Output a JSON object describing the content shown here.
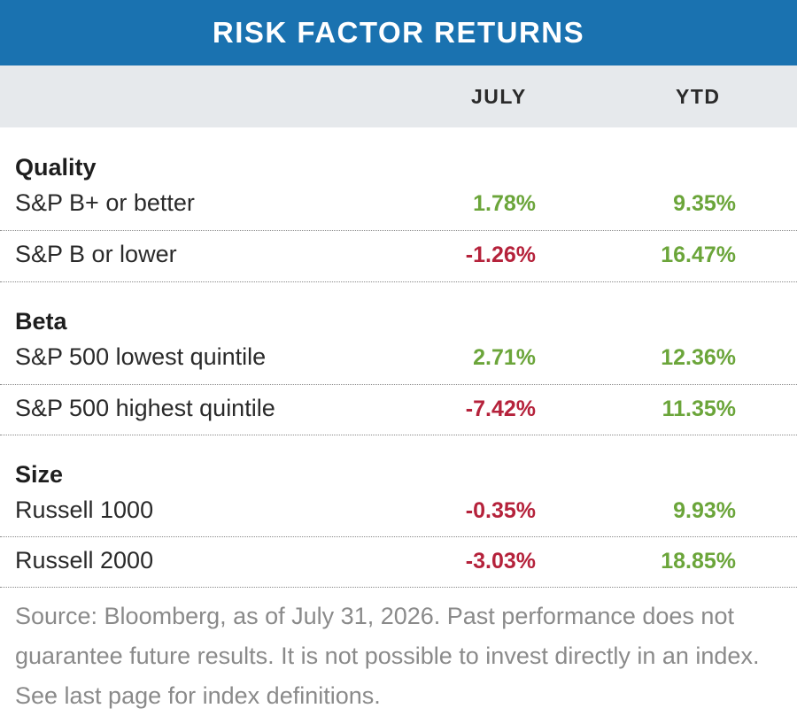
{
  "title": "RISK FACTOR RETURNS",
  "columns": {
    "july": "JULY",
    "ytd": "YTD"
  },
  "groups": [
    {
      "name": "Quality",
      "rows": [
        {
          "label": "S&P B+ or better",
          "july": "1.78%",
          "july_sign": "pos",
          "ytd": "9.35%",
          "ytd_sign": "pos"
        },
        {
          "label": "S&P B or lower",
          "july": "-1.26%",
          "july_sign": "neg",
          "ytd": "16.47%",
          "ytd_sign": "pos"
        }
      ]
    },
    {
      "name": "Beta",
      "rows": [
        {
          "label": "S&P 500 lowest quintile",
          "july": "2.71%",
          "july_sign": "pos",
          "ytd": "12.36%",
          "ytd_sign": "pos"
        },
        {
          "label": "S&P 500 highest quintile",
          "july": "-7.42%",
          "july_sign": "neg",
          "ytd": "11.35%",
          "ytd_sign": "pos"
        }
      ]
    },
    {
      "name": "Size",
      "rows": [
        {
          "label": "Russell 1000",
          "july": "-0.35%",
          "july_sign": "neg",
          "ytd": "9.93%",
          "ytd_sign": "pos"
        },
        {
          "label": "Russell 2000",
          "july": "-3.03%",
          "july_sign": "neg",
          "ytd": "18.85%",
          "ytd_sign": "pos"
        }
      ]
    }
  ],
  "colors": {
    "header": "#1a72b0",
    "positive": "#6ba53a",
    "negative": "#b5223b",
    "subheader": "#e6e9ec"
  },
  "source": "Source: Bloomberg, as of July 31, 2026. Past performance does not guarantee future results. It is not possible to invest directly in an index. See last page for index definitions."
}
